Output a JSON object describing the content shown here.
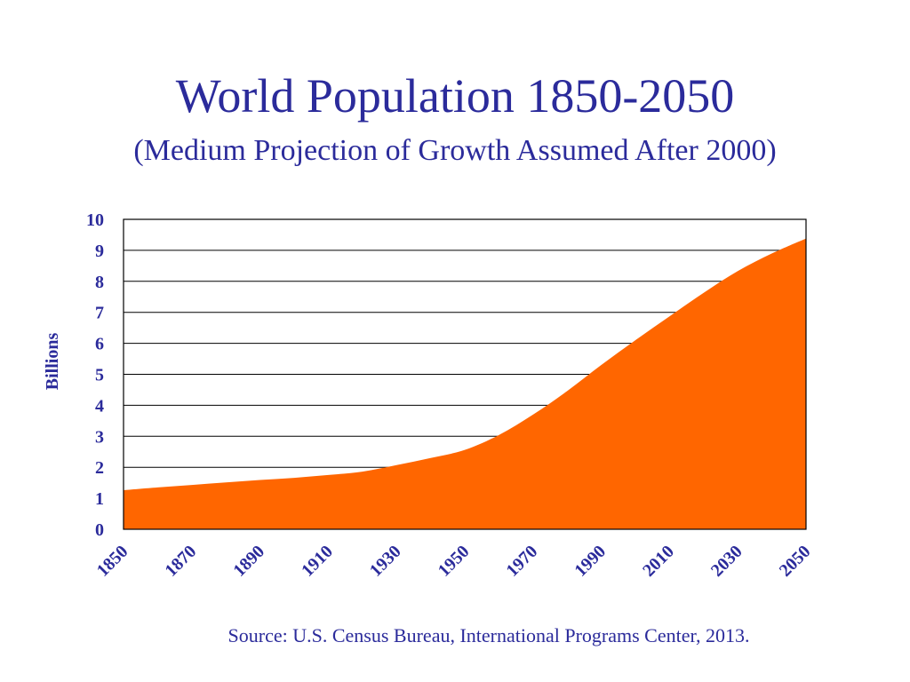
{
  "slide": {
    "title": "World Population 1850-2050",
    "subtitle": "(Medium Projection of Growth Assumed After 2000)",
    "source": "Source: U.S. Census Bureau, International Programs Center, 2013."
  },
  "colors": {
    "text": "#2b2b9b",
    "area": "#ff6600",
    "grid": "#000000"
  },
  "chart_data": {
    "type": "area",
    "ylabel": "Billions",
    "ylim": [
      0,
      10
    ],
    "yticks": [
      0,
      1,
      2,
      3,
      4,
      5,
      6,
      7,
      8,
      9,
      10
    ],
    "xlim": [
      1850,
      2050
    ],
    "xticks": [
      "1850",
      "1870",
      "1890",
      "1910",
      "1930",
      "1950",
      "1970",
      "1990",
      "2010",
      "2030",
      "2050"
    ],
    "grid": "horizontal",
    "x": [
      1850,
      1860,
      1870,
      1880,
      1890,
      1900,
      1910,
      1920,
      1930,
      1940,
      1950,
      1960,
      1970,
      1980,
      1990,
      2000,
      2010,
      2020,
      2030,
      2040,
      2050
    ],
    "values": [
      1.26,
      1.35,
      1.43,
      1.51,
      1.59,
      1.66,
      1.75,
      1.86,
      2.07,
      2.3,
      2.56,
      3.04,
      3.7,
      4.46,
      5.3,
      6.1,
      6.87,
      7.63,
      8.33,
      8.9,
      9.38
    ]
  }
}
